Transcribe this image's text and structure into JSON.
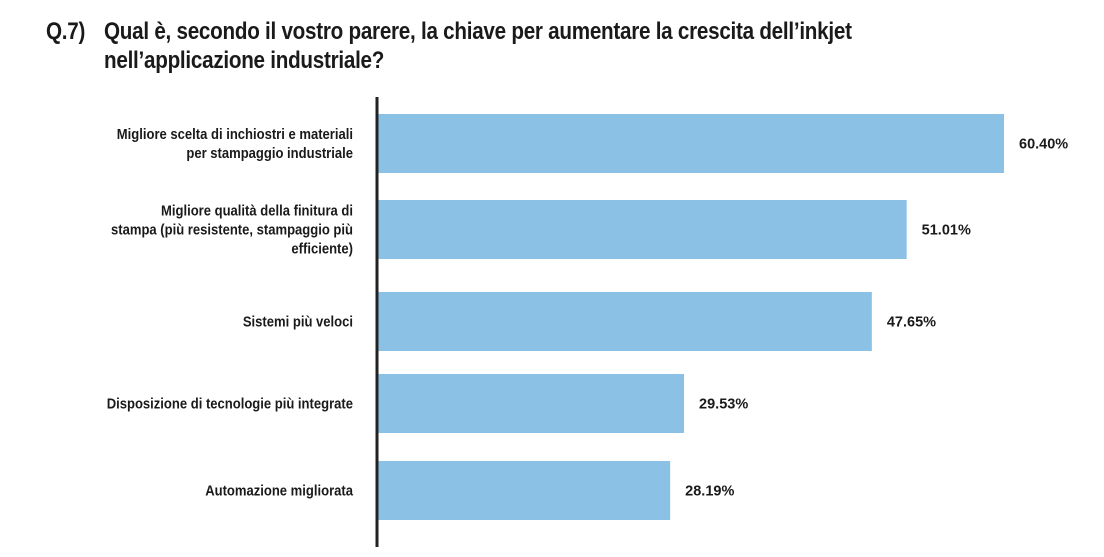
{
  "title": {
    "number": "Q.7)",
    "line1": "Qual è, secondo il vostro parere, la chiave per aumentare la crescita dell’inkjet",
    "line2": "nell’applicazione industriale?"
  },
  "colors": {
    "bar": "#8bc1e4",
    "axis": "#222222"
  },
  "chart_data": {
    "type": "bar",
    "orientation": "horizontal",
    "title": "Qual è, secondo il vostro parere, la chiave per aumentare la crescita dell’inkjet nell’applicazione industriale?",
    "categories": [
      [
        "Migliore scelta di inchiostri e materiali",
        "per stampaggio industriale"
      ],
      [
        "Migliore qualità della finitura di",
        "stampa (più resistente, stampaggio più",
        "efficiente)"
      ],
      [
        "Sistemi più veloci"
      ],
      [
        "Disposizione di tecnologie più integrate"
      ],
      [
        "Automazione migliorata"
      ]
    ],
    "values": [
      60.4,
      51.01,
      47.65,
      29.53,
      28.19
    ],
    "value_labels": [
      "60.40%",
      "51.01%",
      "47.65%",
      "29.53%",
      "28.19%"
    ],
    "xlim": [
      0,
      60.4
    ],
    "grid": false,
    "legend": "none"
  }
}
